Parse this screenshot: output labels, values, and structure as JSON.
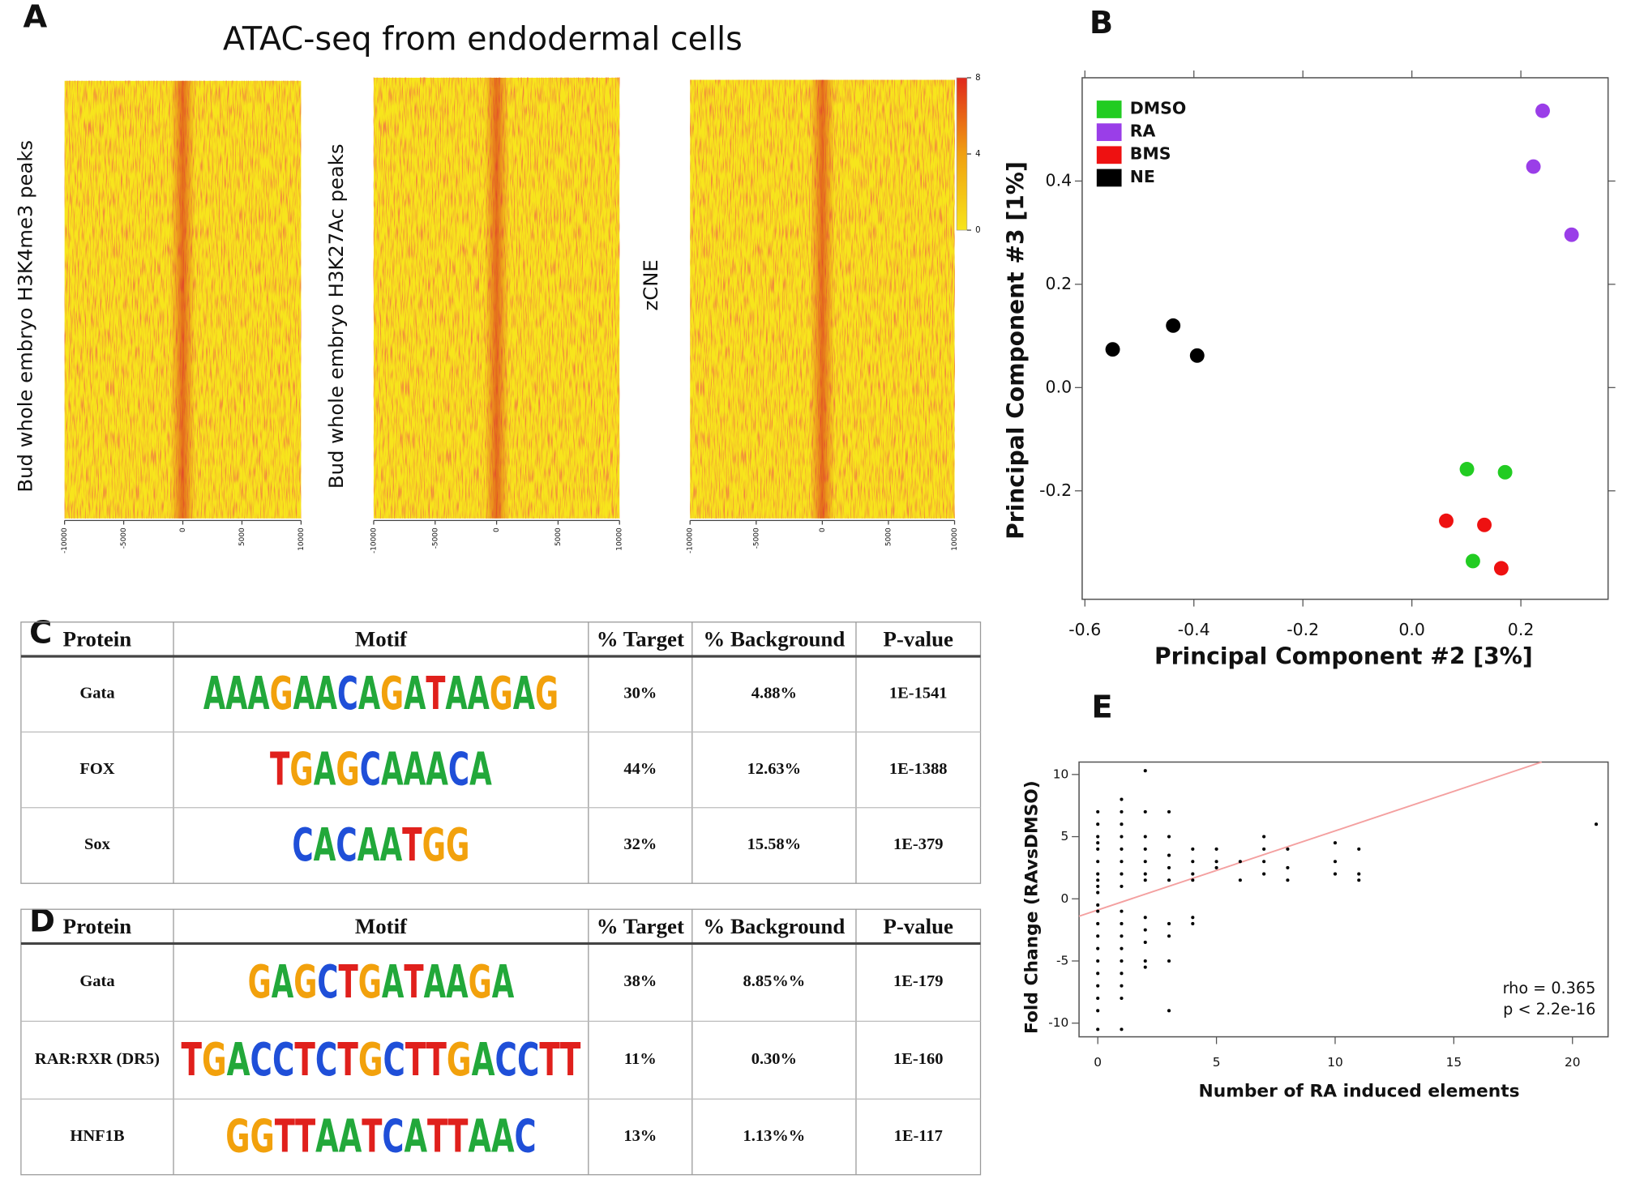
{
  "panel_labels": [
    "A",
    "B",
    "C",
    "D",
    "E"
  ],
  "chart_data": [
    {
      "type": "heatmap",
      "title": "ATAC-seq from endodermal cells",
      "panels": [
        "Bud whole embryo H3K4me3 peaks",
        "Bud whole embryo H3K27Ac peaks",
        "zCNE"
      ],
      "xlim": [
        -10000,
        10000
      ],
      "xticks": [
        -10000,
        -5000,
        0,
        5000,
        10000
      ],
      "colorscale": [
        "#f7e51c",
        "#f0a010",
        "#e0281c"
      ],
      "clim": [
        0,
        8
      ],
      "cticks": [
        0,
        4,
        8
      ]
    },
    {
      "type": "scatter",
      "xlabel": "Principal Component #2 [3%]",
      "ylabel": "Principal Component #3 [1%]",
      "xlim": [
        -0.605,
        0.36
      ],
      "ylim": [
        -0.41,
        0.6
      ],
      "xticks": [
        -0.6,
        -0.4,
        -0.2,
        {
          "value": 0,
          "label": "0.0"
        },
        0.2
      ],
      "yticks": [
        -0.2,
        {
          "value": 0,
          "label": "0.0"
        },
        0.2,
        0.4
      ],
      "legend": "upper left",
      "series": [
        {
          "name": "DMSO",
          "color": "#22cc22",
          "x": [
            0.101,
            0.171,
            0.112
          ],
          "values": [
            -0.158,
            -0.164,
            -0.336
          ]
        },
        {
          "name": "RA",
          "color": "#9a3ee8",
          "x": [
            0.24,
            0.223,
            0.293
          ],
          "values": [
            0.536,
            0.428,
            0.296
          ]
        },
        {
          "name": "BMS",
          "color": "#ee1111",
          "x": [
            0.063,
            0.133,
            0.164
          ],
          "values": [
            -0.258,
            -0.266,
            -0.35
          ]
        },
        {
          "name": "NE",
          "color": "#000000",
          "x": [
            -0.549,
            -0.438,
            -0.394
          ],
          "values": [
            0.074,
            0.12,
            0.062
          ]
        }
      ]
    },
    {
      "type": "scatter",
      "xlabel": "Number of RA induced elements",
      "ylabel": "Fold Change (RAvsDMSO)",
      "xlim": [
        -0.79,
        21.5
      ],
      "ylim": [
        -11.1,
        11
      ],
      "xticks": [
        0,
        5,
        10,
        15,
        20
      ],
      "yticks": [
        -10,
        -5,
        0,
        5,
        10
      ],
      "series": [
        {
          "color": "#000000",
          "x": [
            0,
            0,
            0,
            0,
            0,
            0,
            0,
            0,
            0,
            0,
            0,
            0,
            0,
            0,
            0,
            0,
            0,
            0,
            0,
            0,
            0,
            1,
            1,
            1,
            1,
            1,
            1,
            1,
            1,
            1,
            1,
            1,
            1,
            1,
            1,
            1,
            1,
            1,
            2,
            2,
            2,
            2,
            2,
            2,
            2,
            2,
            2,
            2,
            2,
            2,
            3,
            3,
            3,
            3,
            3,
            3,
            3,
            3,
            3,
            4,
            4,
            4,
            4,
            4,
            4,
            5,
            5,
            5,
            6,
            6,
            7,
            7,
            7,
            7,
            8,
            8,
            8,
            10,
            10,
            10,
            11,
            11,
            11,
            21
          ],
          "values": [
            7,
            6,
            5,
            4.5,
            4,
            3,
            2,
            1,
            0.5,
            1.5,
            -0.5,
            -1,
            -2,
            -3,
            -4,
            -5,
            -6,
            -7,
            -8,
            -9,
            -10.5,
            8,
            7,
            6,
            5,
            4,
            3,
            2,
            1,
            -1,
            -2,
            -3,
            -4,
            -5,
            -6,
            -7,
            -8,
            -10.5,
            10.3,
            7,
            5,
            4,
            3,
            2,
            1.5,
            -1.5,
            -2.5,
            -3.5,
            -5,
            -5.5,
            7,
            5,
            3.5,
            2.5,
            1.5,
            -2,
            -3,
            -5,
            -9,
            4,
            3,
            2,
            1.5,
            -1.5,
            -2,
            4,
            3,
            2.5,
            3,
            1.5,
            5,
            4,
            3,
            2,
            4,
            2.5,
            1.5,
            4.5,
            3,
            2,
            4,
            2,
            1.5,
            6
          ]
        }
      ],
      "fit_line": {
        "color": "#f4a0a0",
        "x": [
          -0.79,
          18.7
        ],
        "values": [
          -1.4,
          11
        ]
      },
      "annotations": [
        "rho = 0.365",
        "p < 2.2e-16"
      ]
    }
  ],
  "tables": [
    {
      "columns": [
        "Protein",
        "Motif",
        "% Target",
        "% Background",
        "P-value"
      ],
      "rows": [
        [
          "Gata",
          "AAAGAACAGATAAGAG",
          "30%",
          "4.88%",
          "1E-1541"
        ],
        [
          "FOX",
          "TGAGCAAACA",
          "44%",
          "12.63%",
          "1E-1388"
        ],
        [
          "Sox",
          "CACAATGG",
          "32%",
          "15.58%",
          "1E-379"
        ]
      ]
    },
    {
      "columns": [
        "Protein",
        "Motif",
        "% Target",
        "% Background",
        "P-value"
      ],
      "rows": [
        [
          "Gata",
          "GAGCTGATAAGA",
          "38%",
          "8.85%%",
          "1E-179"
        ],
        [
          "RAR:RXR (DR5)",
          "TGACCTCTGCTTGACCTT",
          "11%",
          "0.30%",
          "1E-160"
        ],
        [
          "HNF1B",
          "GGTTAATCATTAAC",
          "13%",
          "1.13%%",
          "1E-117"
        ]
      ]
    }
  ]
}
